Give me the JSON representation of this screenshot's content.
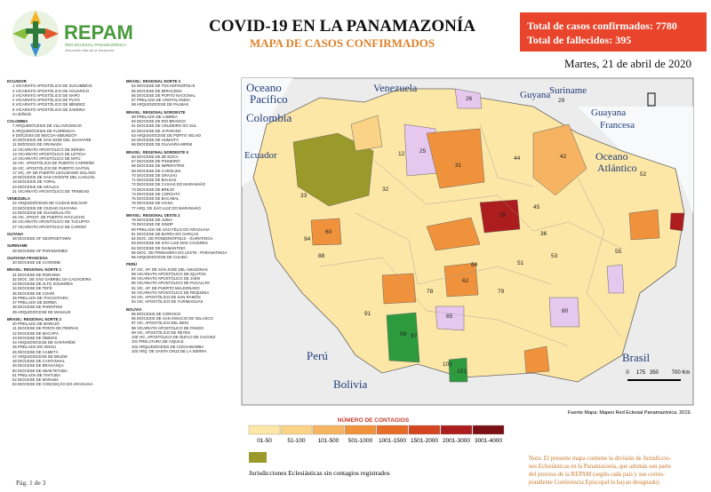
{
  "header": {
    "logo": "REPAM",
    "logo_subtitle": "RED ECLESIAL PANAMAZÓNICA",
    "logo_motto": "Jesucristo vida de la Amazonía",
    "title": "COVID-19 EN LA PANAMAZONÍA",
    "subtitle": "MAPA DE CASOS CONFIRMADOS",
    "totals": [
      "Total de casos confirmados: 7780",
      "Total de fallecidos: 395"
    ],
    "date": "Martes, 21 de abril de 2020"
  },
  "list": {
    "columns": [
      [
        {
          "title": "ECUADOR",
          "items": [
            "1 VICARIATO APOSTÓLICO DE SUCUMBÍOS",
            "2 VICARIATO APOSTÓLICO DE AGUARICO",
            "3 VICARIATO APOSTÓLICO DE NAPO",
            "4 VICARIATO APOSTÓLICO DE PUYO",
            "5 VICARIATO APOSTÓLICO DE MÉNDEZ",
            "6 VICARIATO APOSTÓLICO DE ZAMORA",
            "no definido"
          ]
        },
        {
          "title": "COLOMBIA",
          "items": [
            "7 ARQUIDIÓCESIS DE VILLAVICENCIO",
            "8 ARQUIDIÓCESIS DE FLORENCIA",
            "9 DIÓCESIS DE MOCOA-SIBUNDOY",
            "10 DIÓCESIS DE SAN JOSÉ DEL GUAVIARE",
            "11 DIÓCESIS DE GRANADA",
            "12 VICARIATO APOSTÓLICO DE INÍRIDA",
            "13 VICARIATO APOSTÓLICO DE LETICIA",
            "14 VICARIATO APOSTÓLICO DE MITÚ",
            "15 VIC. APOSTÓLICO DE PUERTO CARREÑO",
            "16 VIC. APOSTÓLICO DE PUERTO GAITÁN",
            "17 VIC. AP. DE PUERTO LEGUÍZAMO-SOLANO",
            "18 DIÓCESIS DE SAN VICENTE DEL CAGUÁN",
            "19 DIÓCESIS DE YOPAL",
            "20 DIÓCESIS DE ARAUCA",
            "21 VICARIATO APOSTÓLICO DE TRINIDAD"
          ]
        },
        {
          "title": "VENEZUELA",
          "items": [
            "22 ARQUIDIÓCESIS DE CIUDAD BOLÍVAR",
            "23 DIÓCESIS DE CIUDAD GUAYANA",
            "24 DIÓCESIS DE GUASDUALITO",
            "25 VIC. APOST. DE PUERTO AYACUCHO",
            "26 VICARIATO APOSTÓLICO DE TUCUPITA",
            "27 VICARIATO APOSTÓLICO DE CARONÍ"
          ]
        },
        {
          "title": "GUYANA",
          "items": [
            "28 DIOCESE OF GEORGETOWN"
          ]
        },
        {
          "title": "SURINAME",
          "items": [
            "29 DIOCESE OF PARAMARIBO"
          ]
        },
        {
          "title": "GUAYANA FRANCESA",
          "items": [
            "30 DIOCESE DE CAYENNE"
          ]
        },
        {
          "title": "BRASIL: REGIONAL NORTE 1",
          "items": [
            "31 DIOCESE DE RORAIMA",
            "32 DIOC. DE SÃO GABRIEL DA CACHOEIRA",
            "33 DIOCESE DE ALTO SOLIMÕES",
            "34 DIOCESE DE TEFÉ",
            "35 DIOCESE DE COARI",
            "36 PRELAZIA DE ITACOATIARA",
            "37 PRELAZIA DE BORBA",
            "38 DIOCESE DE PARINTINS",
            "39 ARQUIDIOCESE DE MANAUS"
          ]
        },
        {
          "title": "BRASIL: REGIONAL NORTE 2",
          "items": [
            "40 PRELAZIA DE MARAJÓ",
            "41 DIOCESE DE PONTA DE PEDRAS",
            "42 DIOCESE DE MACAPÁ",
            "43 DIOCESE DE ÓBIDOS",
            "44 ARQUIDIOCESE DE SANTARÉM",
            "45 PRELAZIA DO XINGU",
            "46 DIOCESE DE CAMETÁ",
            "47 ARQUIDIOCESE DE BELÉM",
            "48 DIOCESE DE CASTANHAL",
            "49 DIOCESE DE BRAGANÇA",
            "50 DIOCESE DE ABAETETUBA",
            "51 PRELAZIA DE ITAITUBA",
            "52 DIOCESE DE MARABÁ",
            "53 DIOCESE DE CONCEIÇÃO DO ARAGUAIA"
          ]
        }
      ],
      [
        {
          "title": "BRASIL: REGIONAL NORTE 3",
          "items": [
            "54 DIOCESE DE TOCANTINÓPOLIS",
            "55 DIOCESE DE MIRACEMA",
            "56 DIOCESE DE PORTO NACIONAL",
            "57 PRELAZIA DE CRISTALÂNDIA",
            "58 ARQUIDIOCESE DE PALMAS"
          ]
        },
        {
          "title": "BRASIL: REGIONAL NOROESTE",
          "items": [
            "59 PRELAZIA DE LÁBREA",
            "60 DIOCESE DE RIO BRANCO",
            "61 DIOCESE DE CRUZEIRO DO SUL",
            "62 DIOCESE DE JI-PARANÁ",
            "63 ARQUIDIOCESE DE PORTO VELHO",
            "64 DIOCESE DE HUMAITÁ",
            "65 DIOCESE DE GUAJARÁ-MIRIM"
          ]
        },
        {
          "title": "BRASIL: REGIONAL NORDESTE 5",
          "items": [
            "66 DIOCESE DE ZÉ DOCA",
            "67 DIOCESE DE PINHEIRO",
            "68 DIOCESE DE IMPERATRIZ",
            "69 DIOCESE DE CAROLINA",
            "70 DIOCESE DE GRAJAÚ",
            "71 DIOCESE DE BALSAS",
            "72 DIOCESE DE CAXIAS DO MARANHÃO",
            "73 DIOCESE DE BREJO",
            "74 DIOCESE DE COROATÁ",
            "75 DIOCESE DE BACABAL",
            "76 DIOCESE DE VIANA",
            "77 ARQ. DE SÃO LUIZ DO MARANHÃO"
          ]
        },
        {
          "title": "BRASIL: REGIONAL OESTE 2",
          "items": [
            "78 DIOCESE DE JUÍNA",
            "79 DIOCESE DE SINOP",
            "80 PRELAZIA DE SÃO FÉLIX DO ARAGUAIA",
            "81 DIOCESE DE BARRA DO GARÇAS",
            "82 DIOC. DE RONDONÓPOLIS - GUIRATINGA",
            "83 DIOCESE DE SÃO LUIZ DOS CÁCERES",
            "84 DIOCESE DE DIAMANTINO",
            "85 DIOC. DE PRIMAVERA DO LESTE - PARANATINGA",
            "86 ARQUIDIOCESE DE CUIABÁ"
          ]
        },
        {
          "title": "PERÚ",
          "items": [
            "87 VIC. AP. DE SAN JOSÉ DEL AMAZONAS",
            "88 VICARIATO APOSTÓLICO DE IQUITOS",
            "89 VICARIATO APOSTÓLICO DE JAÉN",
            "90 VICARIATO APOSTÓLICO DE PUCALLPA",
            "91 VIC. AP. DE PUERTO MALDONADO",
            "92 VICARIATO APOSTÓLICO DE REQUENA",
            "93 VIC. APOSTÓLICO DE SAN RAMÓN",
            "94 VIC. APOSTÓLICO DE YURIMAGUAS"
          ]
        },
        {
          "title": "BOLIVIA",
          "items": [
            "95 DIÓCESIS DE COROICO",
            "96 DIÓCESIS DE SAN IGNACIO DE VELASCO",
            "97 VIC. APOSTÓLICO DEL BENI",
            "98 VICARIATO APOSTÓLICO DE PANDO",
            "99 VIC. APOSTÓLICO DE REYES",
            "100 VIC. APOSTÓLICO DE ÑUFLO DE CHÁVEZ",
            "101 PRELATURA DE AIQUILE",
            "102 ARQUIDIÓCESIS DE COCHABAMBA",
            "103 ARQ. DE SANTA CRUZ DE LA SIERRA"
          ]
        }
      ]
    ]
  },
  "map": {
    "regions": [
      "Oceano Pacífico",
      "Colombia",
      "Venezuela",
      "Guyana",
      "Suriname",
      "Guayana Francesa",
      "Ecuador",
      "Oceano Atlántico",
      "Perú",
      "Bolivia",
      "Brasil"
    ],
    "numbers": [
      "12",
      "25",
      "26",
      "31",
      "32",
      "39",
      "42",
      "52",
      "60",
      "62",
      "65",
      "80",
      "88",
      "94",
      "99",
      "101",
      "102",
      "33",
      "45",
      "53",
      "64",
      "36",
      "29",
      "44",
      "51",
      "97",
      "91",
      "78",
      "79",
      "55"
    ],
    "scale": [
      "0",
      "175",
      "350",
      "700 Km"
    ],
    "source": "Fuente Mapa: Mapeo Red Eclesial Panamazónica. 2019."
  },
  "legend": {
    "title": "NÚMERO DE CONTAGIOS",
    "bins": [
      {
        "label": "01-50",
        "color": "#fde7a6"
      },
      {
        "label": "51-100",
        "color": "#fbd386"
      },
      {
        "label": "101-500",
        "color": "#f6b462"
      },
      {
        "label": "501-1000",
        "color": "#f0923c"
      },
      {
        "label": "1001-1500",
        "color": "#e66c28"
      },
      {
        "label": "1501-2000",
        "color": "#d2451f"
      },
      {
        "label": "2001-3000",
        "color": "#ae1d1d"
      },
      {
        "label": "3001-4000",
        "color": "#7a0f14"
      }
    ],
    "none_label": "Jurisdicciones Eclesiásticas sin contagios registrados",
    "none_color": "#9a9a2a"
  },
  "note": [
    "Nota: El presente mapa contiene la división de Jurisdiccio-",
    "nes Eclesiásticas en la Panamazonía, que además son parte",
    "del proceso de la REPAM  (según cada país y sus corres-",
    "pondiente Conferencia Episcopal lo hayan designado)"
  ],
  "footer": "Pág. 1 de 3"
}
